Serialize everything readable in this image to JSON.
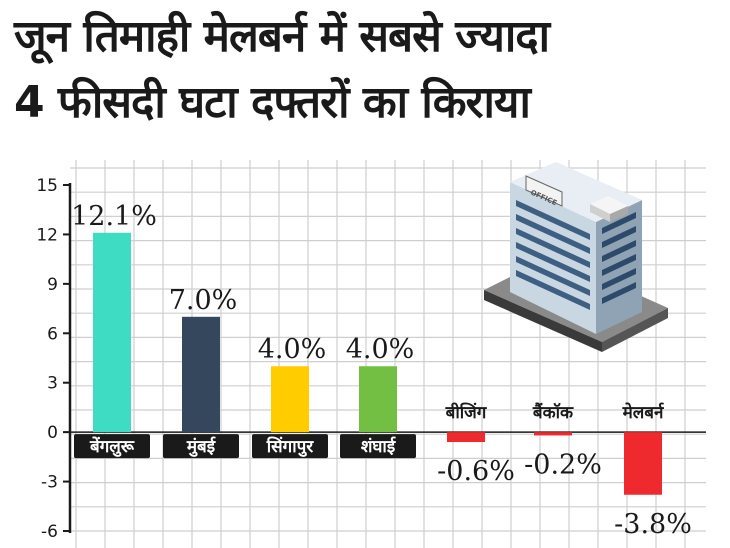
{
  "headline": {
    "line1": "जून तिमाही मेलबर्न में सबसे ज्यादा",
    "line2": "4 फीसदी घटा दफ्तरों का किराया"
  },
  "chart_data": {
    "type": "bar",
    "categories": [
      "बेंगलुरू",
      "मुंबई",
      "सिंगापुर",
      "शंघाई",
      "बीजिंग",
      "बैंकॉक",
      "मेलबर्न"
    ],
    "values": [
      12.1,
      7.0,
      4.0,
      4.0,
      -0.6,
      -0.2,
      -3.8
    ],
    "value_labels": [
      "12.1%",
      "7.0%",
      "4.0%",
      "4.0%",
      "-0.6%",
      "-0.2%",
      "-3.8%"
    ],
    "bar_colors": [
      "#3fdcc4",
      "#34475d",
      "#ffcc00",
      "#72bf44",
      "#ee2a2e",
      "#ee2a2e",
      "#ee2a2e"
    ],
    "y_ticks": [
      "15",
      "12",
      "9",
      "6",
      "3",
      "0",
      "-3",
      "-6"
    ],
    "ylim": [
      -6,
      15
    ],
    "grid": true,
    "title": "",
    "xlabel": "",
    "ylabel": ""
  },
  "illustration": {
    "building_sign": "OFFICE"
  }
}
